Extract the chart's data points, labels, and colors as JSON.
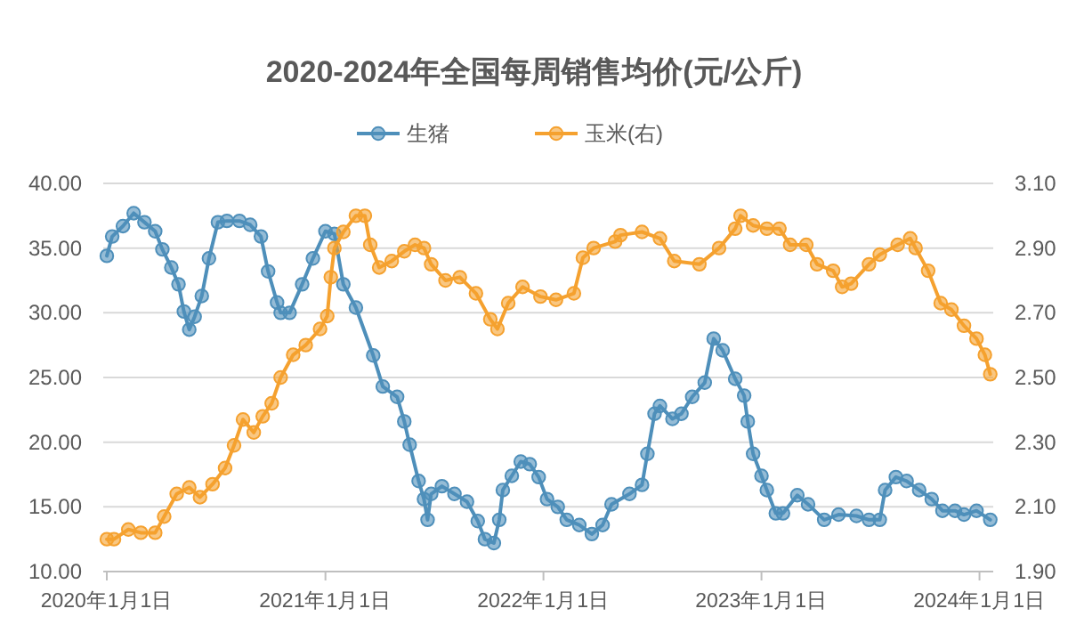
{
  "chart_data": {
    "type": "line",
    "title": "2020-2024年全国每周销售均价(元/公斤)",
    "xlim": [
      "2019-12-26",
      "2024-01-24"
    ],
    "xticks": [
      {
        "value": "2020-01-01",
        "label": "2020年1月1日"
      },
      {
        "value": "2021-01-01",
        "label": "2021年1月1日"
      },
      {
        "value": "2022-01-01",
        "label": "2022年1月1日"
      },
      {
        "value": "2023-01-01",
        "label": "2023年1月1日"
      },
      {
        "value": "2024-01-01",
        "label": "2024年1月1日"
      }
    ],
    "ylim": [
      10,
      40
    ],
    "yticks": [
      {
        "value": 10,
        "label": "10.00"
      },
      {
        "value": 15,
        "label": "15.00"
      },
      {
        "value": 20,
        "label": "20.00"
      },
      {
        "value": 25,
        "label": "25.00"
      },
      {
        "value": 30,
        "label": "30.00"
      },
      {
        "value": 35,
        "label": "35.00"
      },
      {
        "value": 40,
        "label": "40.00"
      }
    ],
    "y2lim": [
      1.9,
      3.1
    ],
    "y2ticks": [
      {
        "value": 1.9,
        "label": "1.90"
      },
      {
        "value": 2.1,
        "label": "2.10"
      },
      {
        "value": 2.3,
        "label": "2.30"
      },
      {
        "value": 2.5,
        "label": "2.50"
      },
      {
        "value": 2.7,
        "label": "2.70"
      },
      {
        "value": 2.9,
        "label": "2.90"
      },
      {
        "value": 3.1,
        "label": "3.10"
      }
    ],
    "grid": "y",
    "legend": "top",
    "marker": "circle",
    "line_style": "solid",
    "series": [
      {
        "name": "生猪",
        "color": "#4e8fba",
        "x": [
          "2020-01-01",
          "2020-01-10",
          "2020-01-28",
          "2020-02-15",
          "2020-03-04",
          "2020-03-22",
          "2020-04-03",
          "2020-04-18",
          "2020-04-30",
          "2020-05-09",
          "2020-05-18",
          "2020-05-27",
          "2020-06-08",
          "2020-06-20",
          "2020-07-05",
          "2020-07-20",
          "2020-08-10",
          "2020-08-28",
          "2020-09-15",
          "2020-09-27",
          "2020-10-12",
          "2020-10-18",
          "2020-11-02",
          "2020-11-23",
          "2020-12-11",
          "2021-01-01",
          "2021-01-16",
          "2021-01-31",
          "2021-02-21",
          "2021-03-22",
          "2021-04-07",
          "2021-05-01",
          "2021-05-13",
          "2021-05-22",
          "2021-06-06",
          "2021-06-15",
          "2021-06-21",
          "2021-06-27",
          "2021-07-15",
          "2021-08-05",
          "2021-08-26",
          "2021-09-13",
          "2021-09-25",
          "2021-10-10",
          "2021-10-19",
          "2021-10-25",
          "2021-11-09",
          "2021-11-24",
          "2021-12-09",
          "2021-12-24",
          "2022-01-07",
          "2022-01-25",
          "2022-02-09",
          "2022-03-02",
          "2022-03-23",
          "2022-04-10",
          "2022-04-25",
          "2022-05-25",
          "2022-06-15",
          "2022-06-24",
          "2022-07-06",
          "2022-07-15",
          "2022-08-05",
          "2022-08-20",
          "2022-09-07",
          "2022-09-28",
          "2022-10-13",
          "2022-10-28",
          "2022-11-18",
          "2022-12-03",
          "2022-12-09",
          "2022-12-18",
          "2023-01-01",
          "2023-01-10",
          "2023-01-25",
          "2023-02-06",
          "2023-03-02",
          "2023-03-20",
          "2023-04-16",
          "2023-05-10",
          "2023-06-09",
          "2023-06-30",
          "2023-07-18",
          "2023-07-27",
          "2023-08-14",
          "2023-09-01",
          "2023-09-22",
          "2023-10-13",
          "2023-10-31",
          "2023-11-21",
          "2023-12-06",
          "2023-12-27",
          "2024-01-19"
        ],
        "values": [
          34.4,
          35.9,
          36.7,
          37.7,
          37.0,
          36.3,
          34.9,
          33.5,
          32.2,
          30.1,
          28.7,
          29.7,
          31.3,
          34.2,
          37.0,
          37.1,
          37.1,
          36.8,
          35.9,
          33.2,
          30.8,
          30.0,
          30.0,
          32.2,
          34.2,
          36.3,
          36.1,
          32.2,
          30.4,
          26.7,
          24.3,
          23.5,
          21.6,
          19.8,
          17.0,
          15.6,
          14.0,
          16.0,
          16.6,
          16.0,
          15.4,
          13.9,
          12.5,
          12.2,
          14.0,
          16.3,
          17.4,
          18.5,
          18.3,
          17.3,
          15.6,
          15.0,
          14.0,
          13.6,
          12.9,
          13.6,
          15.2,
          16.0,
          16.7,
          19.1,
          22.2,
          22.8,
          21.8,
          22.2,
          23.5,
          24.6,
          28.0,
          27.1,
          24.9,
          23.6,
          21.6,
          19.1,
          17.4,
          16.3,
          14.5,
          14.5,
          15.9,
          15.2,
          14.0,
          14.4,
          14.3,
          14.0,
          14.0,
          16.3,
          17.3,
          17.0,
          16.3,
          15.6,
          14.7,
          14.7,
          14.4,
          14.7,
          14.0
        ]
      },
      {
        "name": "玉米(右)",
        "color": "#f5a12f",
        "axis": "y2",
        "x": [
          "2020-01-01",
          "2020-01-13",
          "2020-02-06",
          "2020-02-27",
          "2020-03-22",
          "2020-04-06",
          "2020-04-27",
          "2020-05-18",
          "2020-06-05",
          "2020-06-26",
          "2020-07-17",
          "2020-08-01",
          "2020-08-16",
          "2020-09-03",
          "2020-09-18",
          "2020-10-03",
          "2020-10-18",
          "2020-11-08",
          "2020-11-29",
          "2020-12-23",
          "2021-01-04",
          "2021-01-10",
          "2021-01-16",
          "2021-01-31",
          "2021-02-21",
          "2021-03-08",
          "2021-03-17",
          "2021-04-01",
          "2021-04-22",
          "2021-05-13",
          "2021-05-31",
          "2021-06-15",
          "2021-06-27",
          "2021-07-21",
          "2021-08-14",
          "2021-09-10",
          "2021-10-04",
          "2021-10-16",
          "2021-11-03",
          "2021-11-27",
          "2021-12-27",
          "2022-01-22",
          "2022-02-21",
          "2022-03-08",
          "2022-03-26",
          "2022-05-01",
          "2022-05-10",
          "2022-06-15",
          "2022-07-15",
          "2022-08-08",
          "2022-09-19",
          "2022-10-22",
          "2022-11-18",
          "2022-11-27",
          "2022-12-18",
          "2023-01-10",
          "2023-01-31",
          "2023-02-18",
          "2023-03-17",
          "2023-04-04",
          "2023-05-01",
          "2023-05-16",
          "2023-05-31",
          "2023-06-30",
          "2023-07-18",
          "2023-08-17",
          "2023-09-07",
          "2023-09-16",
          "2023-10-07",
          "2023-10-28",
          "2023-11-15",
          "2023-12-06",
          "2023-12-27",
          "2024-01-10",
          "2024-01-19"
        ],
        "values": [
          2.0,
          2.0,
          2.03,
          2.02,
          2.02,
          2.07,
          2.14,
          2.16,
          2.13,
          2.17,
          2.22,
          2.29,
          2.37,
          2.33,
          2.38,
          2.42,
          2.5,
          2.57,
          2.6,
          2.65,
          2.69,
          2.81,
          2.9,
          2.95,
          3.0,
          3.0,
          2.91,
          2.84,
          2.86,
          2.89,
          2.91,
          2.9,
          2.85,
          2.8,
          2.81,
          2.76,
          2.68,
          2.65,
          2.73,
          2.78,
          2.75,
          2.74,
          2.76,
          2.87,
          2.9,
          2.92,
          2.94,
          2.95,
          2.93,
          2.86,
          2.85,
          2.9,
          2.96,
          3.0,
          2.97,
          2.96,
          2.96,
          2.91,
          2.91,
          2.85,
          2.83,
          2.78,
          2.79,
          2.85,
          2.88,
          2.91,
          2.93,
          2.9,
          2.83,
          2.73,
          2.71,
          2.66,
          2.62,
          2.57,
          2.51
        ]
      }
    ]
  }
}
